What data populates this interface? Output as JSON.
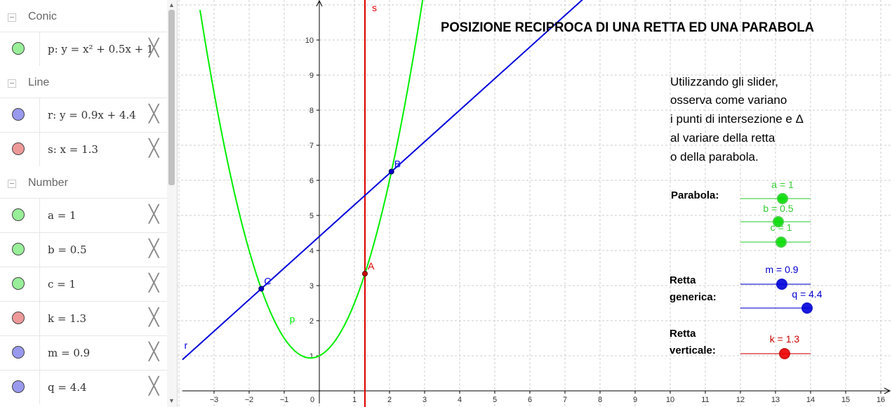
{
  "algebra": {
    "groups": [
      {
        "label": "Conic"
      },
      {
        "label": "Line"
      },
      {
        "label": "Number"
      }
    ],
    "items": [
      {
        "text": "p: y = x² + 0.5x + 1",
        "color": "#99ee99"
      },
      {
        "text": "r: y = 0.9x + 4.4",
        "color": "#9999ee"
      },
      {
        "text": "s: x = 1.3",
        "color": "#ee9999"
      },
      {
        "text": "a = 1",
        "color": "#99ee99"
      },
      {
        "text": "b = 0.5",
        "color": "#99ee99"
      },
      {
        "text": "c = 1",
        "color": "#99ee99"
      },
      {
        "text": "k = 1.3",
        "color": "#ee9999"
      },
      {
        "text": "m = 0.9",
        "color": "#9999ee"
      },
      {
        "text": "q = 4.4",
        "color": "#9999ee"
      }
    ],
    "close_glyph": "╳"
  },
  "graph": {
    "title": "POSIZIONE RECIPROCA DI UNA RETTA ED UNA PARABOLA",
    "instructions": [
      "Utilizzando gli slider,",
      "osserva come variano",
      "i punti di intersezione e Δ",
      "al variare della retta",
      "o della parabola."
    ],
    "x_ticks": [
      "−3",
      "−2",
      "−1",
      "0",
      "1",
      "2",
      "3",
      "4",
      "5",
      "6",
      "7",
      "8",
      "9",
      "10",
      "11",
      "12",
      "13",
      "14",
      "15",
      "16"
    ],
    "y_ticks": [
      "1",
      "2",
      "3",
      "4",
      "5",
      "6",
      "7",
      "8",
      "9",
      "10"
    ],
    "labels": {
      "parabola": "p",
      "line": "r",
      "vertical": "s",
      "A": "A",
      "B": "B",
      "C": "C"
    },
    "sections": {
      "parabola": "Parabola:",
      "retta_gen_1": "Retta",
      "retta_gen_2": "generica:",
      "retta_vert_1": "Retta",
      "retta_vert_2": "verticale:"
    },
    "sliders": {
      "a": "a = 1",
      "b": "b = 0.5",
      "c": "c = 1",
      "m": "m = 0.9",
      "q": "q = 4.4",
      "k": "k = 1.3"
    },
    "colors": {
      "parabola": "#00ee00",
      "line": "#0000dd",
      "vertical": "#dd0000",
      "axis": "#000000",
      "grid": "#cccccc"
    },
    "params": {
      "a": 1,
      "b": 0.5,
      "c": 1,
      "m": 0.9,
      "q": 4.4,
      "k": 1.3
    }
  }
}
